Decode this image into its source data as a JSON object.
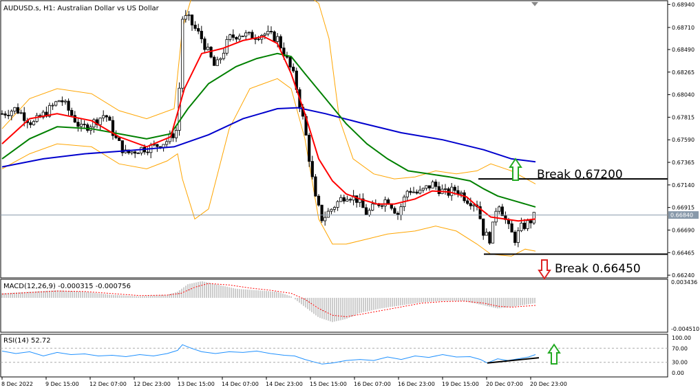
{
  "header": {
    "main_title": "AUDUSD.s, H1:  Australian Dollar vs US Dollar",
    "macd_title": "MACD(12,26,9) -0.000315 -0.000756",
    "rsi_title": "RSI(14) 52.72"
  },
  "annotations": {
    "break_up": "Break 0.67200",
    "break_down": "Break 0.66450"
  },
  "price_axis": {
    "ticks": [
      "0.68940",
      "0.68710",
      "0.68490",
      "0.68265",
      "0.68040",
      "0.67815",
      "0.67590",
      "0.67365",
      "0.67140",
      "0.66915",
      "0.66690",
      "0.66465",
      "0.66240"
    ],
    "current_price": "0.66840"
  },
  "macd_axis": {
    "ticks": [
      "0.003436",
      "-0.004510"
    ]
  },
  "rsi_axis": {
    "ticks": [
      "100.00",
      "70.00",
      "30.00",
      "0.00"
    ]
  },
  "time_axis": {
    "labels": [
      "8 Dec 2022",
      "9 Dec 15:00",
      "12 Dec 07:00",
      "12 Dec 23:00",
      "13 Dec 15:00",
      "14 Dec 07:00",
      "14 Dec 23:00",
      "15 Dec 15:00",
      "16 Dec 07:00",
      "16 Dec 23:00",
      "19 Dec 15:00",
      "20 Dec 07:00",
      "20 Dec 23:00"
    ]
  },
  "colors": {
    "background": "#ffffff",
    "bull_candle": "#ffffff",
    "bear_candle": "#000000",
    "ma_fast": "#ff0000",
    "ma_mid": "#008000",
    "ma_slow": "#0000cd",
    "bollinger": "#ffa500",
    "macd_signal": "#ff0000",
    "rsi_line": "#1e90ff",
    "arrow_up": "#22aa22",
    "arrow_down": "#dd2222"
  },
  "chart_data": {
    "type": "candlestick",
    "symbol": "AUDUSD.s",
    "timeframe": "H1",
    "ylim": [
      0.6622,
      0.6897
    ],
    "key_levels": [
      {
        "label": "Break 0.67200",
        "value": 0.672,
        "direction": "up"
      },
      {
        "label": "Break 0.66450",
        "value": 0.6645,
        "direction": "down"
      }
    ],
    "current_price": 0.6684,
    "close_path": [
      [
        0,
        0.6785
      ],
      [
        20,
        0.679
      ],
      [
        45,
        0.6775
      ],
      [
        70,
        0.679
      ],
      [
        85,
        0.68
      ],
      [
        100,
        0.6785
      ],
      [
        115,
        0.677
      ],
      [
        130,
        0.6775
      ],
      [
        150,
        0.6785
      ],
      [
        165,
        0.676
      ],
      [
        180,
        0.6745
      ],
      [
        200,
        0.675
      ],
      [
        220,
        0.6752
      ],
      [
        240,
        0.6758
      ],
      [
        255,
        0.677
      ],
      [
        262,
        0.688
      ],
      [
        270,
        0.688
      ],
      [
        290,
        0.686
      ],
      [
        310,
        0.683
      ],
      [
        330,
        0.686
      ],
      [
        345,
        0.6865
      ],
      [
        360,
        0.6862
      ],
      [
        380,
        0.6865
      ],
      [
        400,
        0.686
      ],
      [
        410,
        0.6845
      ],
      [
        425,
        0.682
      ],
      [
        440,
        0.677
      ],
      [
        455,
        0.67
      ],
      [
        465,
        0.668
      ],
      [
        485,
        0.6695
      ],
      [
        500,
        0.6705
      ],
      [
        515,
        0.67
      ],
      [
        530,
        0.6685
      ],
      [
        545,
        0.6695
      ],
      [
        560,
        0.67
      ],
      [
        575,
        0.6685
      ],
      [
        590,
        0.671
      ],
      [
        605,
        0.6705
      ],
      [
        625,
        0.6715
      ],
      [
        645,
        0.6705
      ],
      [
        660,
        0.671
      ],
      [
        675,
        0.67
      ],
      [
        690,
        0.6695
      ],
      [
        700,
        0.6665
      ],
      [
        710,
        0.666
      ],
      [
        720,
        0.67
      ],
      [
        735,
        0.6672
      ],
      [
        745,
        0.666
      ],
      [
        755,
        0.6672
      ],
      [
        765,
        0.6676
      ],
      [
        775,
        0.6684
      ]
    ],
    "ma_fast": [
      [
        0,
        0.6755
      ],
      [
        40,
        0.678
      ],
      [
        80,
        0.6785
      ],
      [
        130,
        0.6778
      ],
      [
        170,
        0.6762
      ],
      [
        210,
        0.6752
      ],
      [
        245,
        0.6762
      ],
      [
        265,
        0.681
      ],
      [
        290,
        0.6845
      ],
      [
        320,
        0.685
      ],
      [
        350,
        0.6858
      ],
      [
        380,
        0.6862
      ],
      [
        400,
        0.6855
      ],
      [
        420,
        0.6825
      ],
      [
        440,
        0.6785
      ],
      [
        460,
        0.674
      ],
      [
        480,
        0.6718
      ],
      [
        500,
        0.6705
      ],
      [
        520,
        0.67
      ],
      [
        545,
        0.6695
      ],
      [
        570,
        0.6695
      ],
      [
        600,
        0.67
      ],
      [
        625,
        0.6708
      ],
      [
        650,
        0.6707
      ],
      [
        675,
        0.6702
      ],
      [
        695,
        0.669
      ],
      [
        710,
        0.6682
      ],
      [
        730,
        0.668
      ],
      [
        750,
        0.6678
      ],
      [
        775,
        0.668
      ]
    ],
    "ma_mid": [
      [
        0,
        0.674
      ],
      [
        40,
        0.676
      ],
      [
        80,
        0.6772
      ],
      [
        130,
        0.677
      ],
      [
        170,
        0.6765
      ],
      [
        210,
        0.676
      ],
      [
        245,
        0.6765
      ],
      [
        270,
        0.679
      ],
      [
        300,
        0.6815
      ],
      [
        340,
        0.6832
      ],
      [
        370,
        0.684
      ],
      [
        400,
        0.6845
      ],
      [
        420,
        0.6842
      ],
      [
        440,
        0.6825
      ],
      [
        470,
        0.68
      ],
      [
        500,
        0.6775
      ],
      [
        530,
        0.6755
      ],
      [
        560,
        0.674
      ],
      [
        590,
        0.6728
      ],
      [
        620,
        0.6725
      ],
      [
        650,
        0.6722
      ],
      [
        680,
        0.6718
      ],
      [
        700,
        0.671
      ],
      [
        720,
        0.6703
      ],
      [
        745,
        0.6698
      ],
      [
        775,
        0.6692
      ]
    ],
    "ma_slow": [
      [
        0,
        0.6732
      ],
      [
        60,
        0.674
      ],
      [
        120,
        0.6745
      ],
      [
        180,
        0.6748
      ],
      [
        250,
        0.6752
      ],
      [
        300,
        0.6764
      ],
      [
        350,
        0.678
      ],
      [
        400,
        0.679
      ],
      [
        430,
        0.6791
      ],
      [
        470,
        0.6785
      ],
      [
        520,
        0.6776
      ],
      [
        580,
        0.6766
      ],
      [
        640,
        0.6759
      ],
      [
        700,
        0.6749
      ],
      [
        740,
        0.674
      ],
      [
        775,
        0.6737
      ]
    ],
    "bollinger_upper": [
      [
        0,
        0.677
      ],
      [
        40,
        0.68
      ],
      [
        80,
        0.681
      ],
      [
        130,
        0.6805
      ],
      [
        170,
        0.6788
      ],
      [
        210,
        0.678
      ],
      [
        250,
        0.679
      ],
      [
        262,
        0.687
      ],
      [
        275,
        0.69
      ],
      [
        300,
        0.691
      ],
      [
        350,
        0.6905
      ],
      [
        400,
        0.6905
      ],
      [
        430,
        0.691
      ],
      [
        460,
        0.6895
      ],
      [
        475,
        0.686
      ],
      [
        490,
        0.678
      ],
      [
        510,
        0.674
      ],
      [
        540,
        0.6725
      ],
      [
        570,
        0.672
      ],
      [
        600,
        0.6722
      ],
      [
        630,
        0.6728
      ],
      [
        660,
        0.6725
      ],
      [
        690,
        0.6728
      ],
      [
        710,
        0.6735
      ],
      [
        740,
        0.6728
      ],
      [
        775,
        0.6715
      ]
    ],
    "bollinger_lower": [
      [
        0,
        0.673
      ],
      [
        40,
        0.6745
      ],
      [
        80,
        0.6755
      ],
      [
        130,
        0.6752
      ],
      [
        170,
        0.6735
      ],
      [
        210,
        0.673
      ],
      [
        240,
        0.6738
      ],
      [
        255,
        0.6745
      ],
      [
        262,
        0.672
      ],
      [
        280,
        0.668
      ],
      [
        300,
        0.669
      ],
      [
        330,
        0.677
      ],
      [
        360,
        0.681
      ],
      [
        400,
        0.682
      ],
      [
        420,
        0.681
      ],
      [
        440,
        0.676
      ],
      [
        460,
        0.668
      ],
      [
        480,
        0.6655
      ],
      [
        500,
        0.6655
      ],
      [
        530,
        0.666
      ],
      [
        560,
        0.6665
      ],
      [
        600,
        0.6668
      ],
      [
        630,
        0.6673
      ],
      [
        660,
        0.6668
      ],
      [
        690,
        0.6655
      ],
      [
        710,
        0.6645
      ],
      [
        740,
        0.6643
      ],
      [
        760,
        0.665
      ],
      [
        775,
        0.6648
      ]
    ],
    "macd_hist": [
      [
        0,
        0.3
      ],
      [
        40,
        0.4
      ],
      [
        80,
        0.5
      ],
      [
        120,
        0.4
      ],
      [
        160,
        0.2
      ],
      [
        200,
        0.1
      ],
      [
        240,
        0.2
      ],
      [
        255,
        0.4
      ],
      [
        270,
        0.9
      ],
      [
        290,
        1.1
      ],
      [
        310,
        0.9
      ],
      [
        340,
        0.6
      ],
      [
        370,
        0.5
      ],
      [
        400,
        0.4
      ],
      [
        420,
        0.1
      ],
      [
        440,
        -0.6
      ],
      [
        460,
        -1.3
      ],
      [
        480,
        -1.6
      ],
      [
        500,
        -1.4
      ],
      [
        520,
        -1.0
      ],
      [
        550,
        -0.7
      ],
      [
        580,
        -0.5
      ],
      [
        610,
        -0.3
      ],
      [
        640,
        -0.2
      ],
      [
        670,
        -0.2
      ],
      [
        700,
        -0.5
      ],
      [
        720,
        -0.7
      ],
      [
        740,
        -0.6
      ],
      [
        775,
        -0.35
      ]
    ],
    "macd_signal": [
      [
        0,
        0.25
      ],
      [
        40,
        0.35
      ],
      [
        80,
        0.45
      ],
      [
        120,
        0.42
      ],
      [
        160,
        0.28
      ],
      [
        200,
        0.15
      ],
      [
        240,
        0.18
      ],
      [
        260,
        0.3
      ],
      [
        280,
        0.7
      ],
      [
        300,
        0.95
      ],
      [
        330,
        0.85
      ],
      [
        360,
        0.65
      ],
      [
        390,
        0.5
      ],
      [
        420,
        0.3
      ],
      [
        440,
        -0.1
      ],
      [
        460,
        -0.7
      ],
      [
        480,
        -1.15
      ],
      [
        500,
        -1.25
      ],
      [
        520,
        -1.1
      ],
      [
        550,
        -0.85
      ],
      [
        580,
        -0.6
      ],
      [
        610,
        -0.35
      ],
      [
        640,
        -0.25
      ],
      [
        670,
        -0.22
      ],
      [
        700,
        -0.35
      ],
      [
        720,
        -0.55
      ],
      [
        740,
        -0.62
      ],
      [
        775,
        -0.5
      ]
    ],
    "rsi": [
      [
        0,
        62
      ],
      [
        20,
        55
      ],
      [
        40,
        60
      ],
      [
        60,
        48
      ],
      [
        80,
        58
      ],
      [
        100,
        52
      ],
      [
        120,
        54
      ],
      [
        140,
        48
      ],
      [
        160,
        50
      ],
      [
        180,
        46
      ],
      [
        200,
        52
      ],
      [
        220,
        48
      ],
      [
        240,
        55
      ],
      [
        255,
        64
      ],
      [
        262,
        80
      ],
      [
        275,
        70
      ],
      [
        290,
        60
      ],
      [
        310,
        55
      ],
      [
        330,
        60
      ],
      [
        350,
        58
      ],
      [
        370,
        62
      ],
      [
        390,
        55
      ],
      [
        410,
        50
      ],
      [
        425,
        48
      ],
      [
        440,
        38
      ],
      [
        455,
        30
      ],
      [
        465,
        25
      ],
      [
        480,
        28
      ],
      [
        500,
        35
      ],
      [
        520,
        38
      ],
      [
        540,
        35
      ],
      [
        560,
        45
      ],
      [
        580,
        38
      ],
      [
        600,
        48
      ],
      [
        620,
        44
      ],
      [
        640,
        52
      ],
      [
        660,
        45
      ],
      [
        680,
        46
      ],
      [
        695,
        38
      ],
      [
        705,
        28
      ],
      [
        720,
        40
      ],
      [
        735,
        35
      ],
      [
        750,
        40
      ],
      [
        765,
        45
      ],
      [
        775,
        52
      ]
    ],
    "rsi_trendline": [
      [
        705,
        28
      ],
      [
        780,
        43
      ]
    ],
    "rsi_levels": [
      70,
      30
    ]
  }
}
